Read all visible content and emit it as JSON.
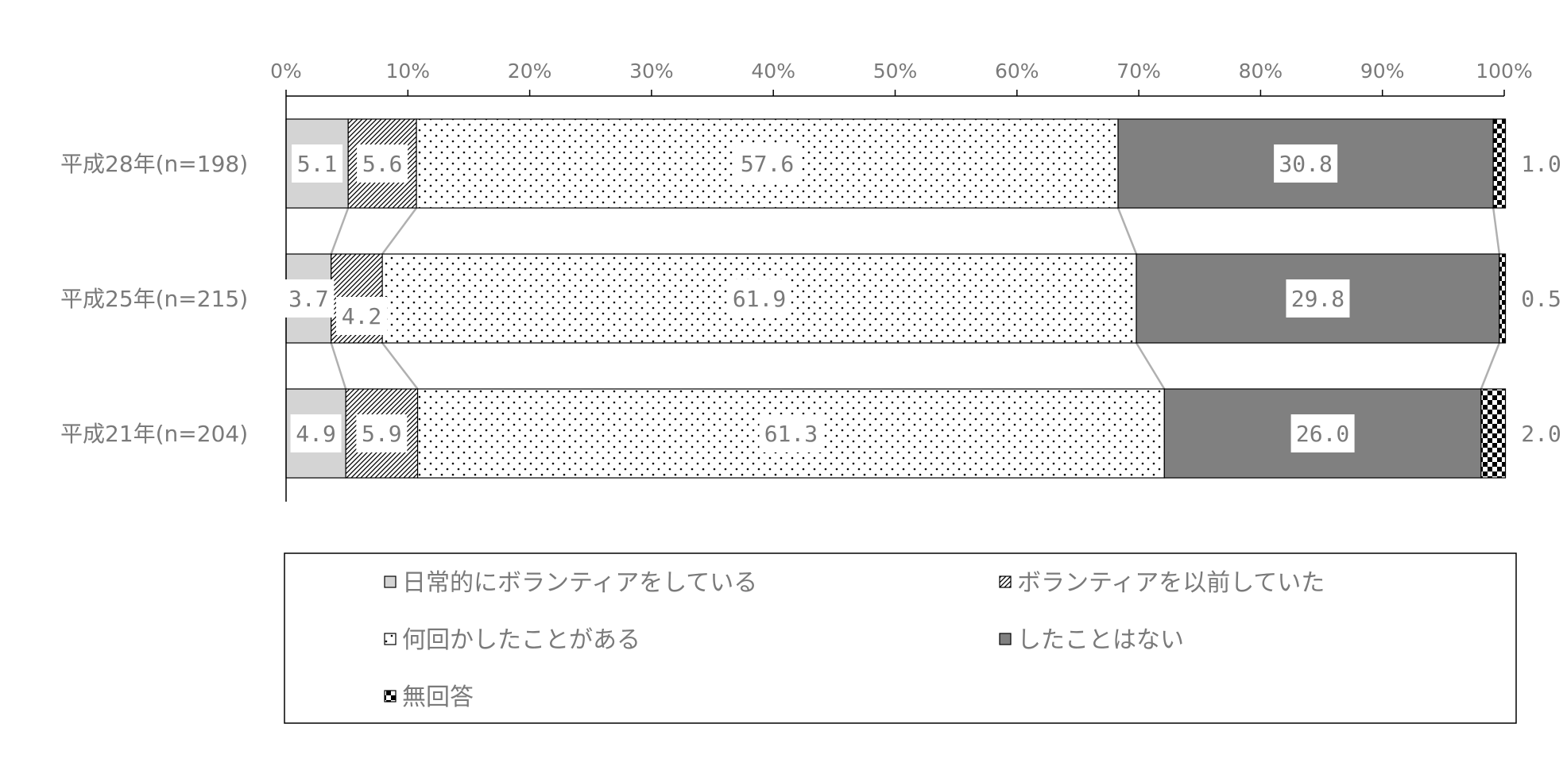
{
  "chart_data": {
    "type": "bar",
    "orientation": "horizontal",
    "stacked": "percent",
    "categories": [
      "平成28年(n=198)",
      "平成25年(n=215)",
      "平成21年(n=204)"
    ],
    "series": [
      {
        "name": "日常的にボランティアをしている",
        "values": [
          5.1,
          3.7,
          4.9
        ],
        "labels": [
          "5.1",
          "3.7",
          "4.9"
        ],
        "color": "#d4d4d4",
        "pattern": "solid"
      },
      {
        "name": "ボランティアを以前していた",
        "values": [
          5.6,
          4.2,
          5.9
        ],
        "labels": [
          "5.6",
          "4.2",
          "5.9"
        ],
        "color": "#ffffff",
        "pattern": "diagonal-hatch"
      },
      {
        "name": "何回かしたことがある",
        "values": [
          57.6,
          61.9,
          61.3
        ],
        "labels": [
          "57.6",
          "61.9",
          "61.3"
        ],
        "color": "#ffffff",
        "pattern": "dots"
      },
      {
        "name": "したことはない",
        "values": [
          30.8,
          29.8,
          26.0
        ],
        "labels": [
          "30.8",
          "29.8",
          "26.0"
        ],
        "color": "#808080",
        "pattern": "solid"
      },
      {
        "name": "無回答",
        "values": [
          1.0,
          0.5,
          2.0
        ],
        "labels": [
          "1.0",
          "0.5",
          "2.0"
        ],
        "color": "#000000",
        "pattern": "checker"
      }
    ],
    "xlim": [
      0,
      100
    ],
    "xticks": [
      "0%",
      "10%",
      "20%",
      "30%",
      "40%",
      "50%",
      "60%",
      "70%",
      "80%",
      "90%",
      "100%"
    ],
    "legend_position": "bottom",
    "series_lines": true,
    "grid": false
  }
}
